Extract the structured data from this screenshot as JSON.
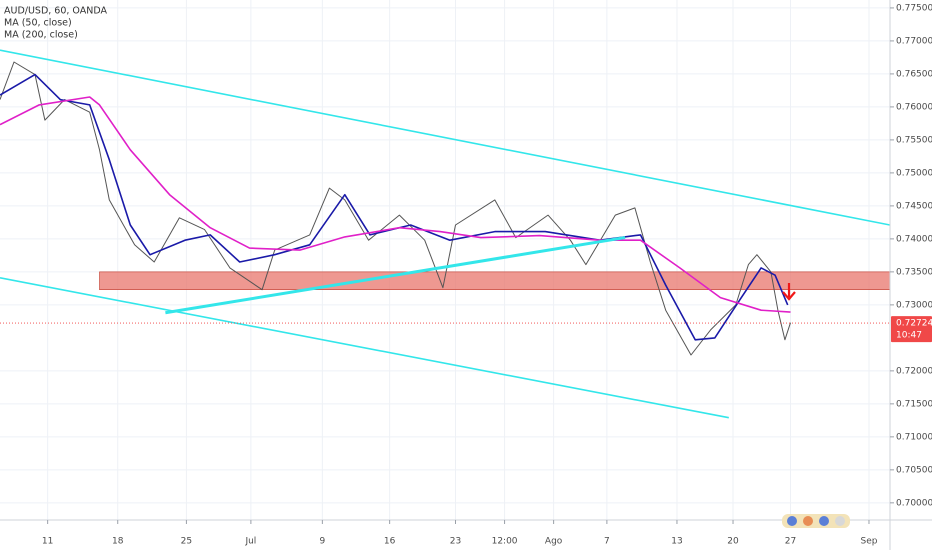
{
  "chart_data": {
    "type": "line",
    "title": "AUD/USD, 60, OANDA",
    "xlim": [
      -3.4,
      60.1
    ],
    "ylim": [
      0.6974,
      0.7762
    ],
    "grid": true,
    "xticks": [
      {
        "value": 0,
        "label": "11"
      },
      {
        "value": 5,
        "label": "18"
      },
      {
        "value": 9.9,
        "label": "25"
      },
      {
        "value": 14.5,
        "label": "Jul"
      },
      {
        "value": 19.6,
        "label": "9"
      },
      {
        "value": 24.4,
        "label": "16"
      },
      {
        "value": 29.1,
        "label": "23"
      },
      {
        "value": 32.6,
        "label": "12:00"
      },
      {
        "value": 36.1,
        "label": "Ago"
      },
      {
        "value": 39.9,
        "label": "7"
      },
      {
        "value": 44.9,
        "label": "13"
      },
      {
        "value": 48.9,
        "label": "20"
      },
      {
        "value": 53.0,
        "label": "27"
      },
      {
        "value": 58.6,
        "label": "Sep"
      }
    ],
    "yticks": [
      {
        "value": 0.775,
        "label": "0.77500"
      },
      {
        "value": 0.77,
        "label": "0.77000"
      },
      {
        "value": 0.765,
        "label": "0.76500"
      },
      {
        "value": 0.76,
        "label": "0.76000"
      },
      {
        "value": 0.755,
        "label": "0.75500"
      },
      {
        "value": 0.75,
        "label": "0.75000"
      },
      {
        "value": 0.745,
        "label": "0.74500"
      },
      {
        "value": 0.74,
        "label": "0.74000"
      },
      {
        "value": 0.735,
        "label": "0.73500"
      },
      {
        "value": 0.73,
        "label": "0.73000"
      },
      {
        "value": 0.72,
        "label": "0.72000"
      },
      {
        "value": 0.715,
        "label": "0.71500"
      },
      {
        "value": 0.71,
        "label": "0.71000"
      },
      {
        "value": 0.705,
        "label": "0.70500"
      },
      {
        "value": 0.7,
        "label": "0.70000"
      }
    ],
    "series": [
      {
        "color": "#555555",
        "x": [
          -3.4,
          -2.4,
          -0.9,
          -0.2,
          1.2,
          3.0,
          3.7,
          4.4,
          6.2,
          7.6,
          9.4,
          11.2,
          13.0,
          15.3,
          16.2,
          18.7,
          20.1,
          21.2,
          22.9,
          25.1,
          26.9,
          28.2,
          29.1,
          31.9,
          33.4,
          35.7,
          37.3,
          38.4,
          40.5,
          41.9,
          43.0,
          44.1,
          45.9,
          47.3,
          49.1,
          50.0,
          50.6,
          51.6,
          52.1,
          52.6,
          53.0
        ],
        "values": [
          0.7611,
          0.7668,
          0.7649,
          0.758,
          0.7611,
          0.7592,
          0.7535,
          0.7459,
          0.7391,
          0.7365,
          0.7432,
          0.7414,
          0.7356,
          0.7323,
          0.7383,
          0.7406,
          0.7477,
          0.7459,
          0.7398,
          0.7436,
          0.7398,
          0.7326,
          0.7421,
          0.7459,
          0.7402,
          0.7436,
          0.7398,
          0.7361,
          0.7436,
          0.7447,
          0.7365,
          0.7292,
          0.7224,
          0.7262,
          0.73,
          0.7361,
          0.7376,
          0.735,
          0.7292,
          0.7247,
          0.7273
        ]
      },
      {
        "name": "MA (50, close)",
        "color": "#1a1aa8",
        "x": [
          -3.4,
          -0.9,
          0.9,
          3.0,
          4.4,
          5.9,
          7.3,
          9.8,
          11.6,
          13.7,
          16.2,
          18.7,
          21.2,
          23.0,
          25.9,
          28.7,
          31.9,
          35.5,
          39.4,
          42.3,
          44.1,
          46.2,
          47.6,
          49.4,
          50.9,
          51.9,
          52.8
        ],
        "values": [
          0.7618,
          0.7649,
          0.7611,
          0.7603,
          0.752,
          0.7421,
          0.7376,
          0.7398,
          0.7406,
          0.7365,
          0.7376,
          0.7391,
          0.7467,
          0.7406,
          0.7421,
          0.7398,
          0.7411,
          0.7411,
          0.7398,
          0.7406,
          0.733,
          0.7247,
          0.725,
          0.7308,
          0.7356,
          0.7345,
          0.73
        ]
      },
      {
        "name": "MA (200, close)",
        "color": "#e020c8",
        "x": [
          -3.4,
          -0.6,
          3.0,
          3.7,
          5.9,
          8.7,
          11.6,
          14.4,
          18.0,
          21.2,
          25.1,
          28.0,
          30.9,
          35.1,
          39.4,
          42.3,
          45.1,
          48.0,
          50.9,
          53.0
        ],
        "values": [
          0.7573,
          0.7603,
          0.7615,
          0.7603,
          0.7535,
          0.7467,
          0.7417,
          0.7386,
          0.7383,
          0.7403,
          0.7417,
          0.7411,
          0.7402,
          0.7405,
          0.7398,
          0.7398,
          0.7356,
          0.7311,
          0.7292,
          0.7289
        ]
      }
    ],
    "trendlines": [
      {
        "color": "#33e6ea",
        "width": 1.6,
        "x": [
          -3.4,
          60.1
        ],
        "y": [
          0.7686,
          0.7421
        ]
      },
      {
        "color": "#33e6ea",
        "width": 1.6,
        "x": [
          -3.4,
          48.6
        ],
        "y": [
          0.7341,
          0.7129
        ]
      },
      {
        "color": "#33e6ea",
        "width": 3,
        "x": [
          8.4,
          41.2
        ],
        "y": [
          0.7288,
          0.7402
        ]
      }
    ],
    "zone": {
      "color": "#e8766c",
      "x": [
        3.7,
        60.1
      ],
      "y": [
        0.7323,
        0.735
      ]
    },
    "last_price": {
      "value": 0.72724,
      "label": "0.72724"
    },
    "countdown": "10:47"
  }
}
